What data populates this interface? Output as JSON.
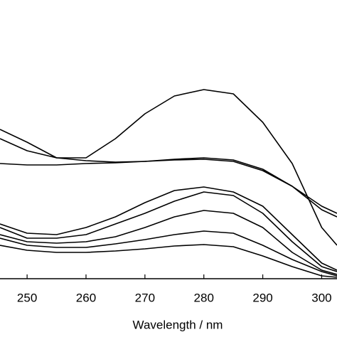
{
  "chart_data": {
    "type": "line",
    "x_label": "Wavelength / nm",
    "x": [
      245.4,
      250,
      255,
      260,
      265,
      270,
      275,
      280,
      285,
      290,
      295,
      300,
      302.6
    ],
    "series": [
      {
        "color": "#000000",
        "values": [
          210,
          192,
          170,
          170,
          197,
          232,
          257,
          266,
          260,
          220,
          162,
          72,
          47
        ]
      },
      {
        "color": "#000000",
        "values": [
          197,
          180,
          170,
          166,
          164,
          165,
          168,
          170,
          167,
          154,
          130,
          97,
          87
        ]
      },
      {
        "color": "#000000",
        "values": [
          162,
          160,
          160,
          162,
          163,
          165,
          167,
          168,
          165,
          152,
          130,
          102,
          92
        ]
      },
      {
        "color": "#000000",
        "values": [
          77,
          64,
          62,
          72,
          87,
          107,
          124,
          129,
          122,
          102,
          62,
          22,
          12
        ]
      },
      {
        "color": "#000000",
        "values": [
          72,
          57,
          57,
          62,
          77,
          92,
          109,
          122,
          117,
          92,
          52,
          17,
          10
        ]
      },
      {
        "color": "#000000",
        "values": [
          62,
          52,
          50,
          52,
          59,
          72,
          87,
          96,
          92,
          72,
          37,
          12,
          6
        ]
      },
      {
        "color": "#000000",
        "values": [
          57,
          47,
          44,
          44,
          49,
          55,
          62,
          67,
          64,
          47,
          27,
          10,
          4
        ]
      },
      {
        "color": "#000000",
        "values": [
          47,
          40,
          37,
          37,
          39,
          42,
          46,
          48,
          45,
          32,
          17,
          4,
          2
        ]
      }
    ],
    "xlim": [
      245.4,
      302.6
    ],
    "xticks": [
      250,
      260,
      270,
      280,
      290,
      300
    ],
    "ylim": [
      0,
      392
    ]
  }
}
